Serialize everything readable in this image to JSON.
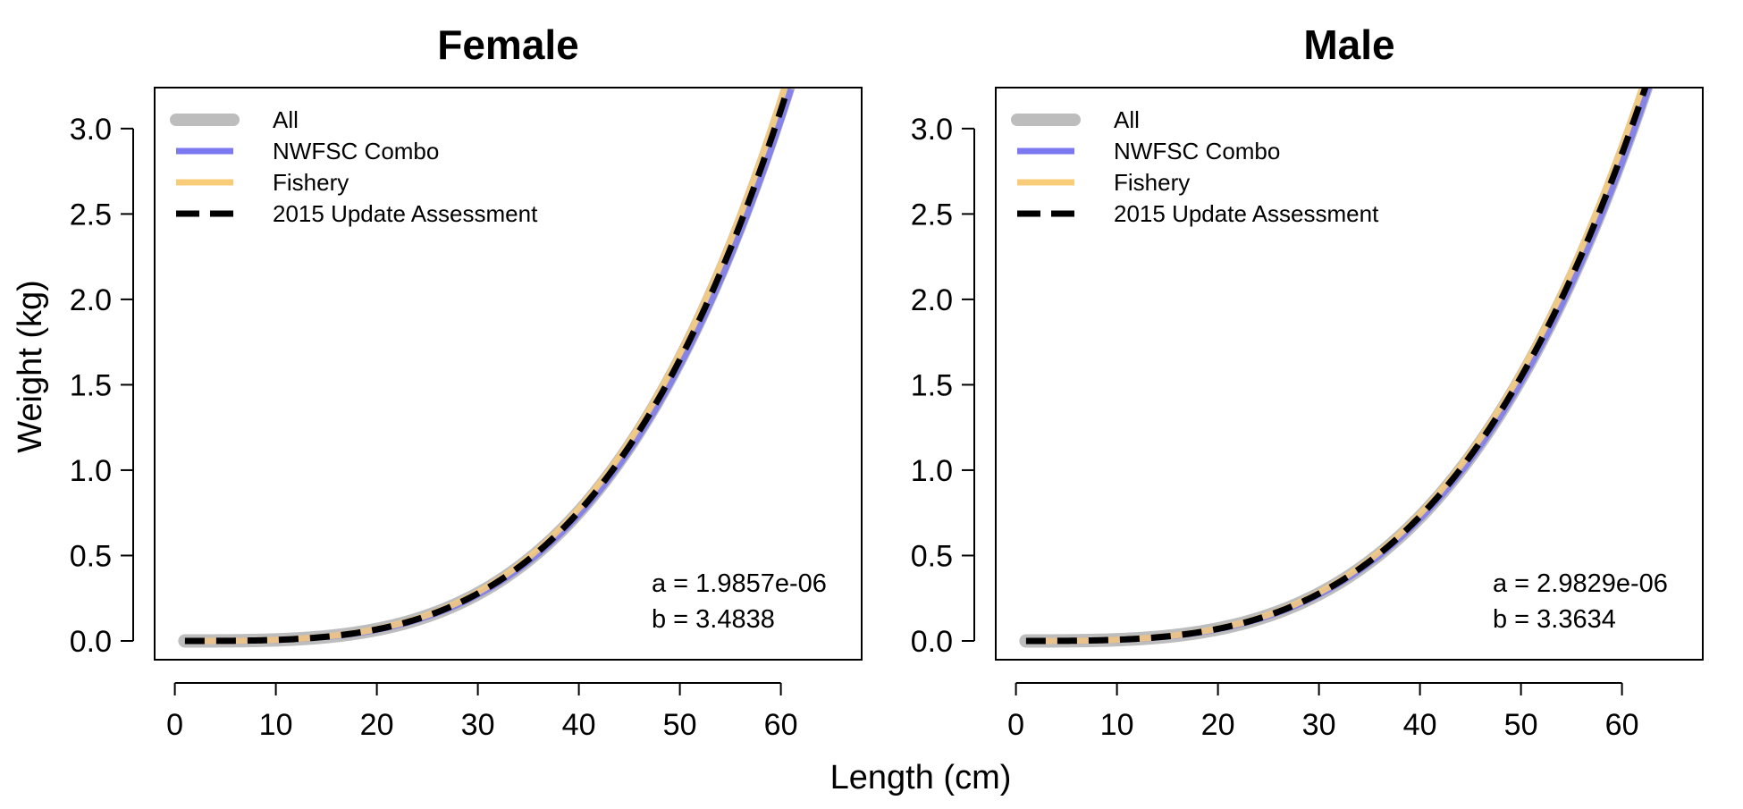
{
  "chart_data": [
    {
      "type": "line",
      "title": "Female",
      "xlabel": "Length (cm)",
      "ylabel": "Weight (kg)",
      "xlim": [
        -2,
        68
      ],
      "ylim": [
        -0.11,
        3.24
      ],
      "xticks": [
        0,
        10,
        20,
        30,
        40,
        50,
        60
      ],
      "xtick_labels": [
        "0",
        "10",
        "20",
        "30",
        "40",
        "50",
        "60"
      ],
      "yticks": [
        0,
        0.5,
        1,
        1.5,
        2,
        2.5,
        3
      ],
      "ytick_labels": [
        "0.0",
        "0.5",
        "1.0",
        "1.5",
        "2.0",
        "2.5",
        "3.0"
      ],
      "grid": false,
      "legend_position": "top-left",
      "annotations": [
        "a = 1.9857e-06",
        "b = 3.4838"
      ],
      "series": [
        {
          "name": "All",
          "color": "#bdbdbd",
          "style": "solid-thick",
          "a": 1.95e-06,
          "b": 3.488,
          "x_range": [
            1,
            61
          ]
        },
        {
          "name": "NWFSC Combo",
          "color": "#7b78f0",
          "style": "solid",
          "a": 1.86e-06,
          "b": 3.495,
          "x_range": [
            1,
            61
          ]
        },
        {
          "name": "Fishery",
          "color": "#f9cc7a",
          "style": "solid",
          "a": 2.1e-06,
          "b": 3.475,
          "x_range": [
            1,
            61
          ]
        },
        {
          "name": "2015 Update Assessment",
          "color": "#000000",
          "style": "dashed",
          "a": 1.9857e-06,
          "b": 3.4838,
          "x_range": [
            1,
            61
          ]
        }
      ]
    },
    {
      "type": "line",
      "title": "Male",
      "xlabel": "Length (cm)",
      "ylabel": "Weight (kg)",
      "xlim": [
        -2,
        68
      ],
      "ylim": [
        -0.11,
        3.24
      ],
      "xticks": [
        0,
        10,
        20,
        30,
        40,
        50,
        60
      ],
      "xtick_labels": [
        "0",
        "10",
        "20",
        "30",
        "40",
        "50",
        "60"
      ],
      "yticks": [
        0,
        0.5,
        1,
        1.5,
        2,
        2.5,
        3
      ],
      "ytick_labels": [
        "0.0",
        "0.5",
        "1.0",
        "1.5",
        "2.0",
        "2.5",
        "3.0"
      ],
      "grid": false,
      "legend_position": "top-left",
      "annotations": [
        "a = 2.9829e-06",
        "b = 3.3634"
      ],
      "series": [
        {
          "name": "All",
          "color": "#bdbdbd",
          "style": "solid-thick",
          "a": 2.95e-06,
          "b": 3.365,
          "x_range": [
            1,
            63
          ]
        },
        {
          "name": "NWFSC Combo",
          "color": "#7b78f0",
          "style": "solid",
          "a": 2.85e-06,
          "b": 3.37,
          "x_range": [
            1,
            63
          ]
        },
        {
          "name": "Fishery",
          "color": "#f9cc7a",
          "style": "solid",
          "a": 3.1e-06,
          "b": 3.358,
          "x_range": [
            1,
            63
          ]
        },
        {
          "name": "2015 Update Assessment",
          "color": "#000000",
          "style": "dashed",
          "a": 2.9829e-06,
          "b": 3.3634,
          "x_range": [
            1,
            63
          ]
        }
      ]
    }
  ]
}
